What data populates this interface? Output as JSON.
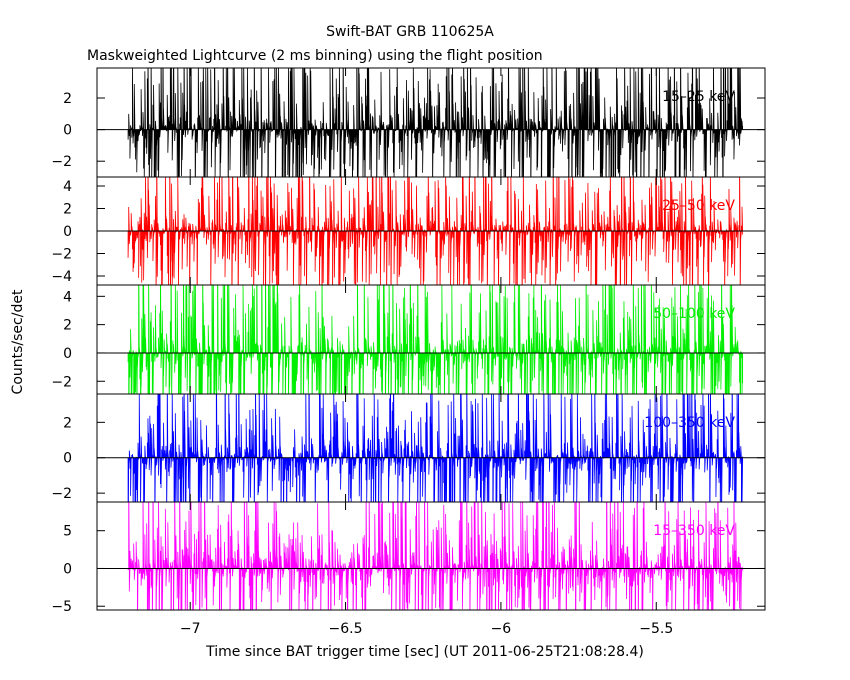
{
  "chart_data": {
    "type": "line",
    "title": "Swift-BAT GRB 110625A",
    "subtitle": "Maskweighted Lightcurve (2 ms binning) using the flight position",
    "xlabel": "Time since BAT trigger time [sec] (UT 2011-06-25T21:08:28.4)",
    "ylabel": "Counts/sec/det",
    "xlim": [
      -7.3,
      -5.15
    ],
    "x_ticks": [
      -7,
      -6.5,
      -6,
      -5.5
    ],
    "x_tick_labels": [
      "−7",
      "−6.5",
      "−6",
      "−5.5"
    ],
    "x_range_data": [
      -7.2,
      -5.22
    ],
    "bin_width": 0.002,
    "grid": false,
    "panels": [
      {
        "name": "15–25 keV",
        "color": "#000000",
        "ylim": [
          -3.0,
          3.9
        ],
        "yticks": [
          -2,
          0,
          2
        ],
        "ytick_labels": [
          "−2",
          "0",
          "2"
        ],
        "amplitude": 3.6,
        "seed": 11
      },
      {
        "name": "25–50 keV",
        "color": "#ff0000",
        "ylim": [
          -4.8,
          4.8
        ],
        "yticks": [
          -4,
          -2,
          0,
          2,
          4
        ],
        "ytick_labels": [
          "−4",
          "−2",
          "0",
          "2",
          "4"
        ],
        "amplitude": 4.6,
        "seed": 23
      },
      {
        "name": "50–100 keV",
        "color": "#00ee00",
        "ylim": [
          -2.9,
          4.8
        ],
        "yticks": [
          -2,
          0,
          2,
          4
        ],
        "ytick_labels": [
          "−2",
          "0",
          "2",
          "4"
        ],
        "amplitude": 4.6,
        "seed": 37
      },
      {
        "name": "100–350 keV",
        "color": "#0000ff",
        "ylim": [
          -2.5,
          3.6
        ],
        "yticks": [
          -2,
          0,
          2
        ],
        "ytick_labels": [
          "−2",
          "0",
          "2"
        ],
        "amplitude": 3.5,
        "seed": 53
      },
      {
        "name": "15–350 keV",
        "color": "#ff00ff",
        "ylim": [
          -5.5,
          8.8
        ],
        "yticks": [
          -5,
          0,
          5
        ],
        "ytick_labels": [
          "−5",
          "0",
          "5"
        ],
        "amplitude": 7.5,
        "seed": 71
      }
    ]
  }
}
